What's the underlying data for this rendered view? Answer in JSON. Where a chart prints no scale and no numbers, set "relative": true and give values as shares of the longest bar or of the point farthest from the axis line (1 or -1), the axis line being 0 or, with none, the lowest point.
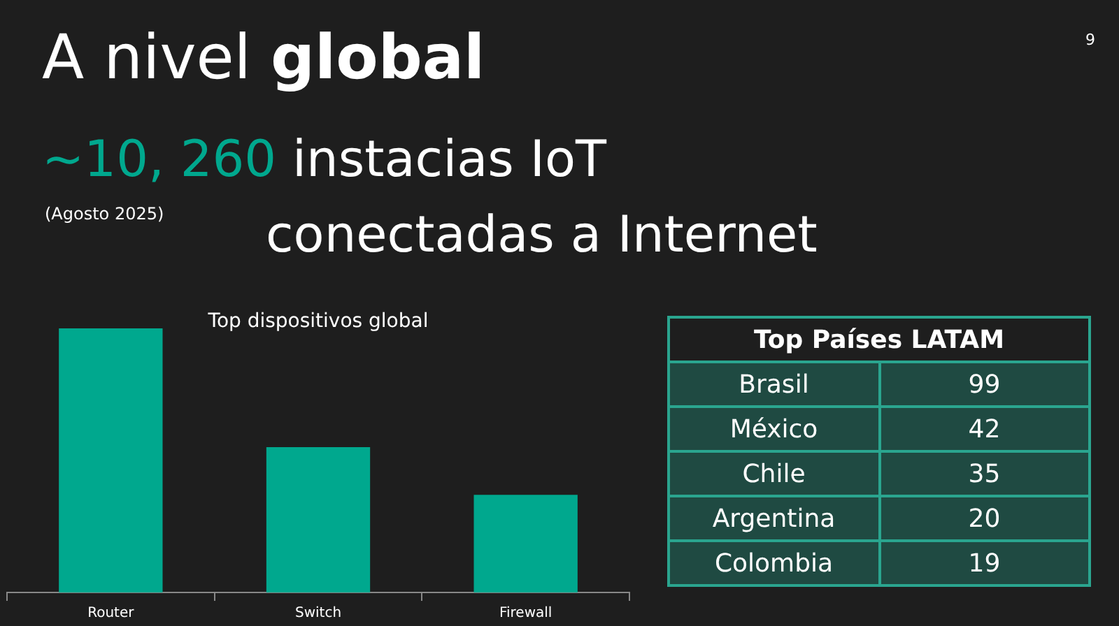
{
  "chart_data": [
    {
      "type": "bar",
      "title": "Top dispositivos global",
      "categories": [
        "Router",
        "Switch",
        "Firewall"
      ],
      "values": [
        1,
        0.55,
        0.37
      ],
      "color": "#00a88e",
      "relative": true,
      "annotations": [
        "A nivel global",
        "~10, 260 instacias IoT conectadas a Internet",
        "(Agosto 2025)",
        "9"
      ]
    },
    {
      "type": "other",
      "title": "Top Países LATAM",
      "categories": [
        "Brasil",
        "México",
        "Chile",
        "Argentina",
        "Colombia"
      ],
      "values": [
        99,
        42,
        35,
        20,
        19
      ],
      "color": "#1f4a42",
      "data_labels": true
    }
  ]
}
